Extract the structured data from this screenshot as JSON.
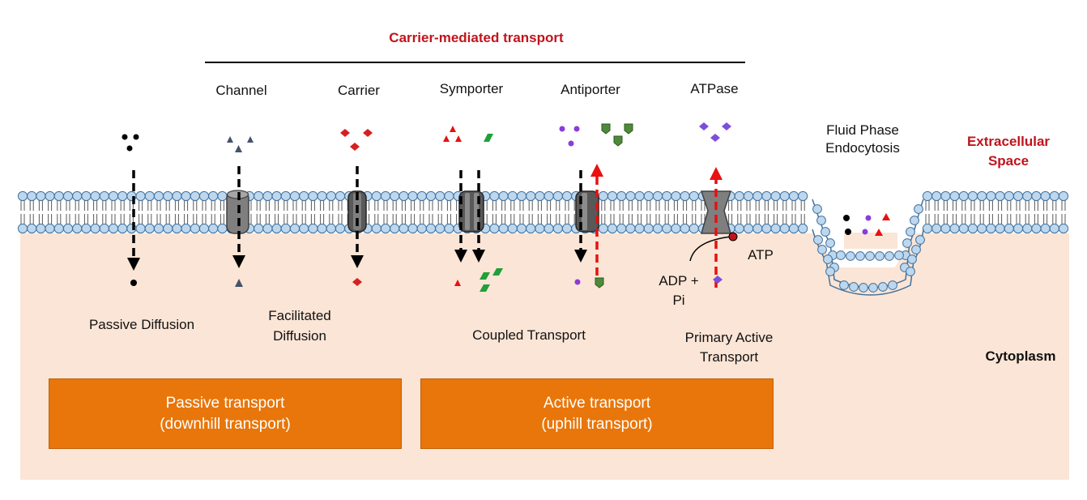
{
  "header": {
    "title": "Carrier-mediated transport"
  },
  "transporters": {
    "channel": "Channel",
    "carrier": "Carrier",
    "symporter": "Symporter",
    "antiporter": "Antiporter",
    "atpase": "ATPase"
  },
  "regions": {
    "extracellular_line1": "Extracellular",
    "extracellular_line2": "Space",
    "cytoplasm": "Cytoplasm"
  },
  "endocytosis": {
    "line1": "Fluid Phase",
    "line2": "Endocytosis"
  },
  "mechanisms": {
    "passive_diffusion": "Passive Diffusion",
    "facilitated_line1": "Facilitated",
    "facilitated_line2": "Diffusion",
    "coupled": "Coupled Transport",
    "primary_line1": "Primary Active",
    "primary_line2": "Transport"
  },
  "atp": {
    "atp": "ATP",
    "adp_line1": "ADP +",
    "adp_line2": "Pi"
  },
  "boxes": {
    "passive_line1": "Passive transport",
    "passive_line2": "(downhill transport)",
    "active_line1": "Active transport",
    "active_line2": "(uphill transport)"
  },
  "colors": {
    "cytoplasm": "#fbe5d6",
    "lipid_head": "#bdd7ee",
    "lipid_head_stroke": "#41719c",
    "box_fill": "#e8760a",
    "title_red": "#c0141c",
    "arrow_red": "#e81010",
    "triangle_blue": "#44546a",
    "diamond_red": "#d62020",
    "square_green": "#1fa038",
    "dot_purple": "#8a3dd8",
    "shield_green": "#4e8a3a",
    "diamond_purple": "#7b4fd8"
  }
}
